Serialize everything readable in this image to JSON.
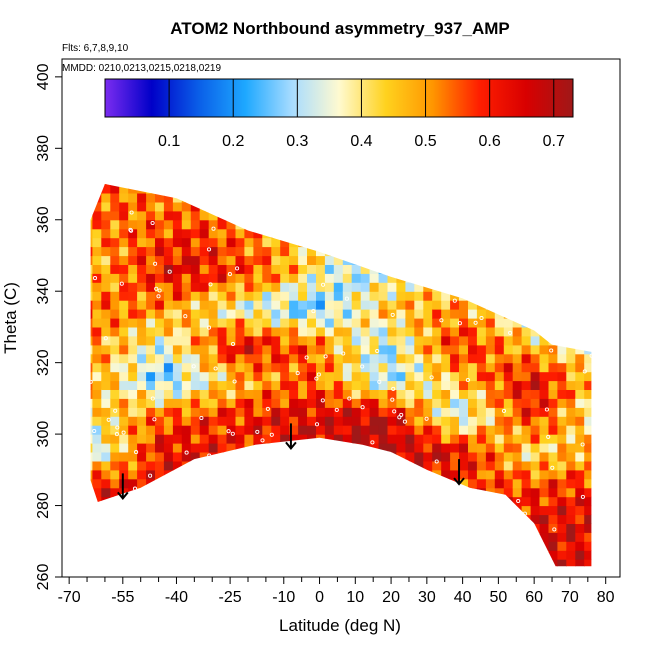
{
  "chart_data": {
    "type": "heatmap",
    "title": "ATOM2 Northbound asymmetry_937_AMP",
    "flights_label": "Flts: 6,7,8,9,10",
    "dates_label": "MMDD: 0210,0213,0215,0218,0219",
    "xlabel": "Latitude (deg N)",
    "ylabel": "Theta (C)",
    "xlim": [
      -72,
      84
    ],
    "ylim": [
      260,
      405
    ],
    "x_ticks": [
      -70,
      -55,
      -40,
      -25,
      -10,
      0,
      10,
      20,
      30,
      40,
      50,
      60,
      70,
      80
    ],
    "x_tick_labels": [
      "-70",
      "-55",
      "-40",
      "-25",
      "-10",
      "0",
      "10",
      "20",
      "30",
      "40",
      "50",
      "60",
      "70",
      "80"
    ],
    "y_ticks": [
      260,
      280,
      300,
      320,
      340,
      360,
      380,
      400
    ],
    "y_tick_labels": [
      "260",
      "280",
      "300",
      "320",
      "340",
      "360",
      "380",
      "400"
    ],
    "colorbar": {
      "range": [
        0,
        0.73
      ],
      "ticks": [
        0.1,
        0.2,
        0.3,
        0.4,
        0.5,
        0.6,
        0.7
      ],
      "tick_labels": [
        "0.1",
        "0.2",
        "0.3",
        "0.4",
        "0.5",
        "0.6",
        "0.7"
      ],
      "colors": [
        "#7b2cf0",
        "#0000c8",
        "#0a5ee8",
        "#1ea8ff",
        "#a8dcff",
        "#fffad0",
        "#ffd21e",
        "#ff9600",
        "#ff1e00",
        "#d80000",
        "#a01818"
      ]
    },
    "domain_upper": [
      [
        -64,
        360
      ],
      [
        -60,
        370
      ],
      [
        -40,
        366
      ],
      [
        -20,
        357
      ],
      [
        0,
        351
      ],
      [
        20,
        344
      ],
      [
        40,
        338
      ],
      [
        60,
        329
      ],
      [
        65,
        325
      ],
      [
        76,
        323
      ]
    ],
    "domain_lower": [
      [
        76,
        263
      ],
      [
        66,
        263
      ],
      [
        60,
        275
      ],
      [
        52,
        283
      ],
      [
        42,
        285
      ],
      [
        30,
        290
      ],
      [
        20,
        295
      ],
      [
        12,
        297
      ],
      [
        0,
        299
      ],
      [
        -18,
        297
      ],
      [
        -35,
        293
      ],
      [
        -50,
        285
      ],
      [
        -62,
        281
      ],
      [
        -64,
        287
      ]
    ],
    "sample_rows": [
      {
        "theta": 365,
        "values": [
          0.55,
          0.5,
          0.45,
          0.5,
          0.55
        ]
      },
      {
        "theta": 355,
        "values": [
          0.5,
          0.6,
          0.45,
          0.35,
          0.45,
          0.5
        ]
      },
      {
        "theta": 345,
        "values": [
          0.45,
          0.65,
          0.55,
          0.3,
          0.4,
          0.35,
          0.45
        ]
      },
      {
        "theta": 335,
        "values": [
          0.55,
          0.5,
          0.35,
          0.25,
          0.45,
          0.5,
          0.3,
          0.4
        ]
      },
      {
        "theta": 325,
        "values": [
          0.5,
          0.35,
          0.65,
          0.55,
          0.3,
          0.6,
          0.45,
          0.35
        ]
      },
      {
        "theta": 315,
        "values": [
          0.5,
          0.25,
          0.45,
          0.55,
          0.3,
          0.45,
          0.65,
          0.4
        ]
      },
      {
        "theta": 305,
        "values": [
          0.4,
          0.55,
          0.6,
          0.65,
          0.7,
          0.3,
          0.6,
          0.35
        ]
      },
      {
        "theta": 295,
        "values": [
          0.3,
          0.65,
          0.6,
          0.65,
          0.7,
          0.65,
          0.4,
          0.5
        ]
      },
      {
        "theta": 285,
        "values": [
          0.65,
          0.5,
          0.55,
          0.6
        ]
      },
      {
        "theta": 275,
        "values": [
          0.55,
          0.6,
          0.65
        ]
      }
    ],
    "arrows": [
      {
        "lat": -55,
        "theta_top": 289,
        "theta_bottom": 282
      },
      {
        "lat": -8,
        "theta_top": 303,
        "theta_bottom": 296
      },
      {
        "lat": 39,
        "theta_top": 293,
        "theta_bottom": 286
      }
    ]
  }
}
